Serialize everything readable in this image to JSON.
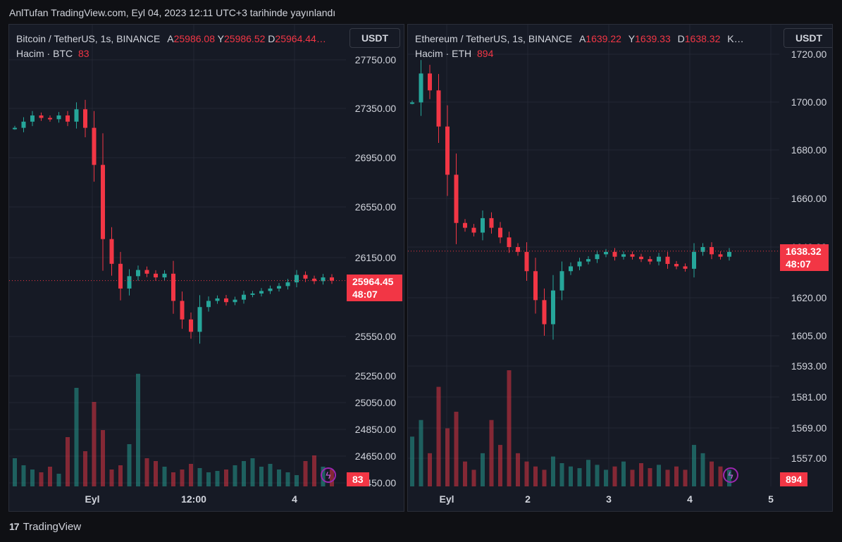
{
  "header": {
    "published": "AnlTufan TradingView.com, Eyl 04, 2023 12:11 UTC+3 tarihinde yayınlandı"
  },
  "footer": {
    "brand": "TradingView",
    "logo_glyph": "17"
  },
  "colors": {
    "up": "#26a69a",
    "down": "#f23645",
    "background": "#161a25",
    "grid": "#232733",
    "text": "#d1d4dc"
  },
  "panes": [
    {
      "id": "btc",
      "legend": {
        "symbol": "Bitcoin / TetherUS, 1s, BINANCE",
        "a_label": "A",
        "a_value": "25986.08",
        "y_label": "Y",
        "y_value": "25986.52",
        "d_label": "D",
        "d_value": "25964.44…",
        "volume_label": "Hacim · BTC",
        "volume_value": "83"
      },
      "currency_button": "USDT",
      "last_price": "25964.45",
      "countdown": "48:07",
      "volume_tag": "83",
      "icons": [
        "lightning-icon"
      ]
    },
    {
      "id": "eth",
      "legend": {
        "symbol": "Ethereum / TetherUS, 1s, BINANCE",
        "a_label": "A",
        "a_value": "1639.22",
        "y_label": "Y",
        "y_value": "1639.33",
        "d_label": "D",
        "d_value": "1638.32",
        "k_label": "K…",
        "volume_label": "Hacim · ETH",
        "volume_value": "894"
      },
      "currency_button": "USDT",
      "last_price": "1638.32",
      "countdown": "48:07",
      "volume_tag": "894",
      "icons": [
        "lightning-icon"
      ]
    }
  ],
  "chart_data": [
    {
      "type": "candlestick",
      "title": "Bitcoin / TetherUS, 1s, BINANCE",
      "y_ticks": [
        "27750.00",
        "27350.00",
        "26950.00",
        "26550.00",
        "26150.00",
        "25550.00",
        "25250.00",
        "25050.00",
        "24850.00",
        "24650.00",
        "24450.00"
      ],
      "y_tick_values": [
        27750,
        27350,
        26950,
        26550,
        26150,
        25550,
        25250,
        25050,
        24850,
        24650,
        24450
      ],
      "x_ticks": [
        "Eyl",
        "12:00",
        "4"
      ],
      "last_price": 25964.45,
      "series_close_approx": [
        27200,
        27250,
        27300,
        27280,
        27270,
        27300,
        27250,
        27350,
        27200,
        26900,
        26300,
        26100,
        25900,
        26000,
        26050,
        26020,
        25990,
        26020,
        25800,
        25650,
        25550,
        25750,
        25800,
        25820,
        25790,
        25810,
        25850,
        25860,
        25880,
        25900,
        25920,
        25950,
        26010,
        25980,
        25960,
        25990,
        25964
      ],
      "volume_approx": [
        20,
        15,
        12,
        10,
        14,
        9,
        35,
        70,
        25,
        60,
        40,
        12,
        15,
        30,
        80,
        20,
        18,
        14,
        10,
        12,
        16,
        13,
        10,
        11,
        12,
        15,
        18,
        20,
        14,
        16,
        12,
        10,
        8,
        18,
        22,
        14,
        12
      ]
    },
    {
      "type": "candlestick",
      "title": "Ethereum / TetherUS, 1s, BINANCE",
      "y_ticks": [
        "1720.00",
        "1700.00",
        "1680.00",
        "1660.00",
        "1640.00",
        "1620.00",
        "1605.00",
        "1593.00",
        "1581.00",
        "1569.00",
        "1557.00"
      ],
      "y_tick_values": [
        1720,
        1700,
        1680,
        1660,
        1640,
        1620,
        1605,
        1593,
        1581,
        1569,
        1557
      ],
      "x_ticks": [
        "Eyl",
        "2",
        "3",
        "4",
        "5"
      ],
      "last_price": 1638.32,
      "series_close_approx": [
        1700,
        1712,
        1705,
        1690,
        1670,
        1650,
        1648,
        1646,
        1652,
        1648,
        1644,
        1640,
        1638,
        1630,
        1618,
        1608,
        1622,
        1630,
        1632,
        1634,
        1635,
        1637,
        1638,
        1636,
        1637,
        1636,
        1635,
        1634,
        1636,
        1633,
        1632,
        1631,
        1638,
        1640,
        1637,
        1636,
        1638
      ],
      "volume_approx": [
        30,
        40,
        20,
        60,
        35,
        45,
        15,
        10,
        20,
        40,
        25,
        70,
        20,
        15,
        12,
        10,
        18,
        14,
        12,
        11,
        16,
        13,
        10,
        12,
        15,
        10,
        14,
        11,
        13,
        10,
        12,
        10,
        25,
        20,
        15,
        12,
        10
      ]
    }
  ]
}
